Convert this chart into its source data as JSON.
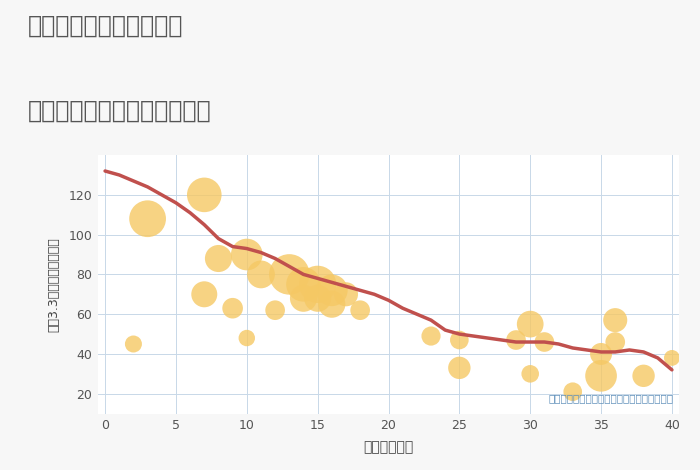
{
  "title_line1": "奈良県奈良市下狭川町の",
  "title_line2": "築年数別中古マンション価格",
  "xlabel": "築年数（年）",
  "ylabel": "坪（3.3㎡）単価（万円）",
  "background_color": "#f7f7f7",
  "plot_background": "#ffffff",
  "line_color": "#c0504d",
  "scatter_color": "#f5c864",
  "scatter_alpha": 0.8,
  "annotation": "円の大きさは、取引のあった物件面積を示す",
  "annotation_color": "#5b8db8",
  "xlim": [
    -0.5,
    40.5
  ],
  "ylim": [
    10,
    140
  ],
  "xticks": [
    0,
    5,
    10,
    15,
    20,
    25,
    30,
    35,
    40
  ],
  "yticks": [
    20,
    40,
    60,
    80,
    100,
    120
  ],
  "line_x": [
    0,
    1,
    2,
    3,
    4,
    5,
    6,
    7,
    8,
    9,
    10,
    11,
    12,
    13,
    14,
    15,
    16,
    17,
    18,
    19,
    20,
    21,
    22,
    23,
    24,
    25,
    26,
    27,
    28,
    29,
    30,
    31,
    32,
    33,
    34,
    35,
    36,
    37,
    38,
    39,
    40
  ],
  "line_y": [
    132,
    130,
    127,
    124,
    120,
    116,
    111,
    105,
    98,
    94,
    93,
    91,
    88,
    84,
    80,
    78,
    76,
    74,
    72,
    70,
    67,
    63,
    60,
    57,
    52,
    50,
    49,
    48,
    47,
    46,
    46,
    46,
    45,
    43,
    42,
    41,
    41,
    42,
    41,
    38,
    32
  ],
  "scatter_x": [
    2,
    3,
    7,
    7,
    8,
    9,
    10,
    10,
    11,
    12,
    13,
    14,
    14,
    15,
    15,
    16,
    16,
    17,
    18,
    23,
    25,
    25,
    29,
    30,
    30,
    31,
    33,
    35,
    35,
    36,
    36,
    38,
    40
  ],
  "scatter_y": [
    45,
    108,
    70,
    120,
    88,
    63,
    90,
    48,
    80,
    62,
    80,
    75,
    68,
    75,
    68,
    72,
    65,
    70,
    62,
    49,
    33,
    47,
    47,
    30,
    55,
    46,
    21,
    40,
    29,
    57,
    46,
    29,
    38
  ],
  "scatter_size": [
    150,
    700,
    350,
    620,
    380,
    220,
    520,
    140,
    400,
    200,
    850,
    620,
    380,
    720,
    380,
    520,
    380,
    300,
    200,
    190,
    260,
    180,
    200,
    160,
    370,
    200,
    180,
    250,
    520,
    300,
    200,
    260,
    130
  ]
}
